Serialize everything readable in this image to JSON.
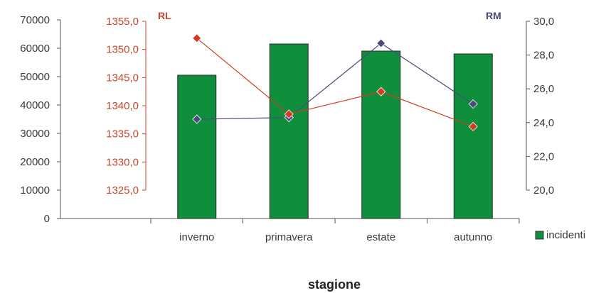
{
  "chart_data": {
    "type": "bar",
    "categories": [
      "inverno",
      "primavera",
      "estate",
      "autunno"
    ],
    "xlabel": "stagione",
    "grid": false,
    "legend_position": "right",
    "primary_axis": {
      "ylim": [
        0,
        70000
      ],
      "ticks": [
        "0",
        "10000",
        "20000",
        "30000",
        "40000",
        "50000",
        "60000",
        "70000"
      ]
    },
    "rl_axis": {
      "title": "RL",
      "ylim": [
        1325,
        1355
      ],
      "ticks": [
        "1325,0",
        "1330,0",
        "1335,0",
        "1340,0",
        "1345,0",
        "1350,0",
        "1355,0"
      ]
    },
    "rm_axis": {
      "title": "RM",
      "ylim": [
        20,
        30
      ],
      "ticks": [
        "20,0",
        "22,0",
        "24,0",
        "26,0",
        "28,0",
        "30,0"
      ]
    },
    "series": [
      {
        "name": "incidenti",
        "type": "bar",
        "axis": "primary",
        "color": "#0f8f3c",
        "values": [
          50500,
          61500,
          59000,
          58000
        ]
      },
      {
        "type": "line",
        "axis": "rl",
        "color": "#d63a1f",
        "values": [
          1352.0,
          1338.5,
          1342.5,
          1336.3
        ]
      },
      {
        "type": "line",
        "axis": "rm",
        "color": "#4b4a7c",
        "values": [
          24.2,
          24.3,
          28.7,
          25.1
        ]
      }
    ]
  }
}
